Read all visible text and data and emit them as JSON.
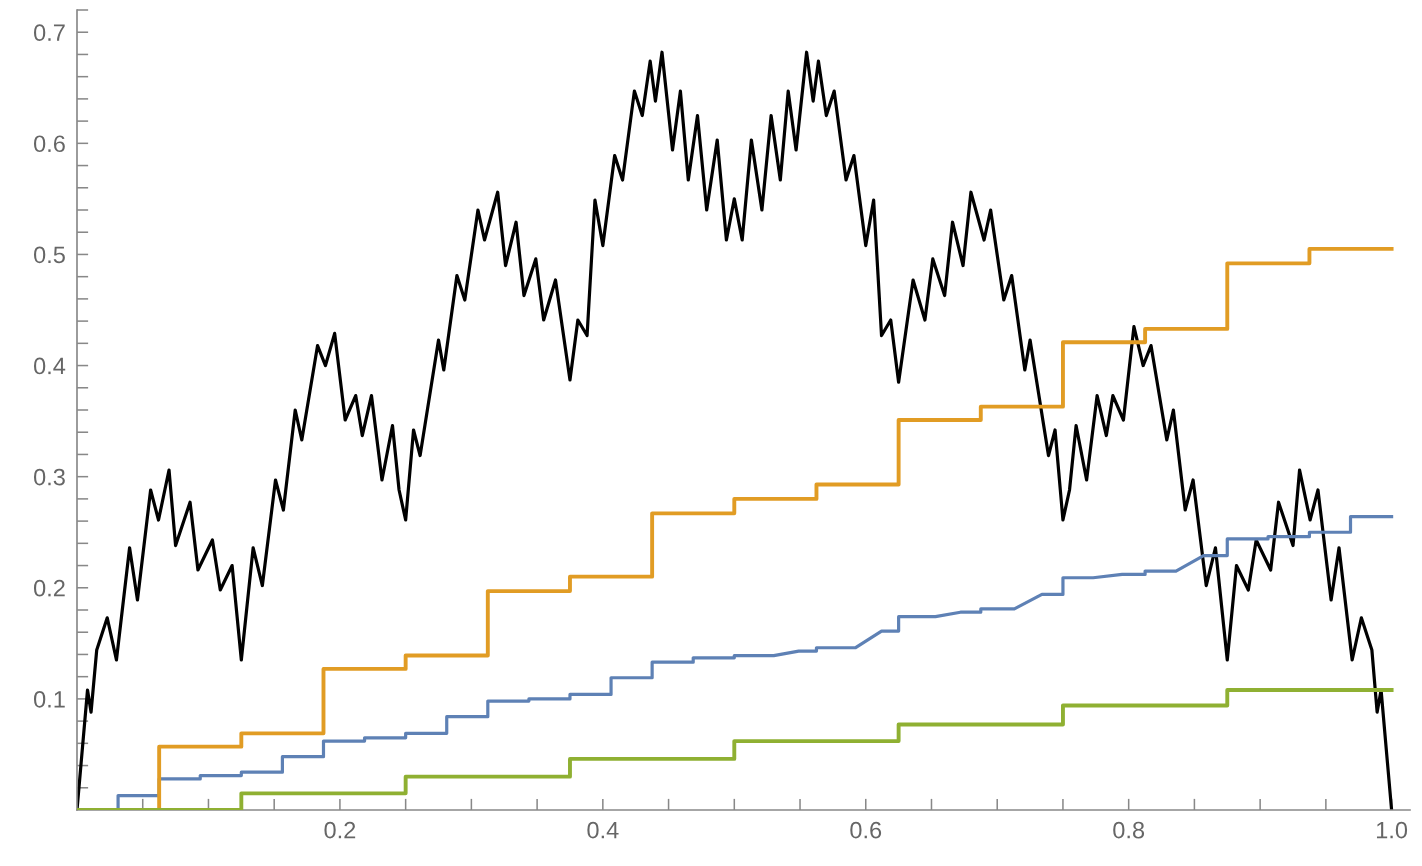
{
  "chart_data": {
    "type": "line",
    "xlim": [
      0,
      1.014
    ],
    "ylim": [
      0,
      0.72
    ],
    "xticks": [
      {
        "value": 0.05,
        "label": null
      },
      {
        "value": 0.1,
        "label": null
      },
      {
        "value": 0.15,
        "label": null
      },
      0.2,
      {
        "value": 0.25,
        "label": null
      },
      {
        "value": 0.3,
        "label": null
      },
      {
        "value": 0.35,
        "label": null
      },
      0.4,
      {
        "value": 0.45,
        "label": null
      },
      {
        "value": 0.5,
        "label": null
      },
      {
        "value": 0.55,
        "label": null
      },
      0.6,
      {
        "value": 0.65,
        "label": null
      },
      {
        "value": 0.7,
        "label": null
      },
      {
        "value": 0.75,
        "label": null
      },
      0.8,
      {
        "value": 0.85,
        "label": null
      },
      {
        "value": 0.9,
        "label": null
      },
      {
        "value": 0.95,
        "label": null
      },
      {
        "value": 1.0,
        "label": "1.0"
      }
    ],
    "yticks": [
      {
        "value": 0.02,
        "label": null
      },
      {
        "value": 0.04,
        "label": null
      },
      {
        "value": 0.06,
        "label": null
      },
      {
        "value": 0.08,
        "label": null
      },
      0.1,
      {
        "value": 0.12,
        "label": null
      },
      {
        "value": 0.14,
        "label": null
      },
      {
        "value": 0.16,
        "label": null
      },
      {
        "value": 0.18,
        "label": null
      },
      0.2,
      {
        "value": 0.22,
        "label": null
      },
      {
        "value": 0.24,
        "label": null
      },
      {
        "value": 0.26,
        "label": null
      },
      {
        "value": 0.28,
        "label": null
      },
      0.3,
      {
        "value": 0.32,
        "label": null
      },
      {
        "value": 0.34,
        "label": null
      },
      {
        "value": 0.36,
        "label": null
      },
      {
        "value": 0.38,
        "label": null
      },
      0.4,
      {
        "value": 0.42,
        "label": null
      },
      {
        "value": 0.44,
        "label": null
      },
      {
        "value": 0.46,
        "label": null
      },
      {
        "value": 0.48,
        "label": null
      },
      0.5,
      {
        "value": 0.52,
        "label": null
      },
      {
        "value": 0.54,
        "label": null
      },
      {
        "value": 0.56,
        "label": null
      },
      {
        "value": 0.58,
        "label": null
      },
      0.6,
      {
        "value": 0.62,
        "label": null
      },
      {
        "value": 0.64,
        "label": null
      },
      {
        "value": 0.66,
        "label": null
      },
      {
        "value": 0.68,
        "label": null
      },
      0.7,
      {
        "value": 0.72,
        "label": null
      }
    ],
    "grid": false,
    "legend": false,
    "series": [
      {
        "color": "#000000",
        "x": [
          0,
          0.008,
          0.0107,
          0.015,
          0.023,
          0.03,
          0.04,
          0.046,
          0.056,
          0.062,
          0.07,
          0.075,
          0.086,
          0.092,
          0.103,
          0.109,
          0.118,
          0.125,
          0.134,
          0.141,
          0.151,
          0.157,
          0.166,
          0.171,
          0.183,
          0.189,
          0.196,
          0.204,
          0.212,
          0.217,
          0.224,
          0.232,
          0.24,
          0.245,
          0.25,
          0.256,
          0.261,
          0.275,
          0.279,
          0.289,
          0.295,
          0.305,
          0.31,
          0.32,
          0.326,
          0.334,
          0.34,
          0.349,
          0.355,
          0.364,
          0.375,
          0.381,
          0.388,
          0.394,
          0.4,
          0.409,
          0.415,
          0.424,
          0.43,
          0.436,
          0.44,
          0.445,
          0.453,
          0.459,
          0.465,
          0.472,
          0.479,
          0.487,
          0.494,
          0.5,
          0.506,
          0.513,
          0.521,
          0.528,
          0.535,
          0.541,
          0.547,
          0.555,
          0.56,
          0.564,
          0.57,
          0.576,
          0.585,
          0.591,
          0.6,
          0.606,
          0.612,
          0.619,
          0.625,
          0.636,
          0.645,
          0.651,
          0.66,
          0.666,
          0.674,
          0.68,
          0.69,
          0.695,
          0.705,
          0.711,
          0.721,
          0.725,
          0.739,
          0.744,
          0.75,
          0.755,
          0.76,
          0.768,
          0.776,
          0.783,
          0.788,
          0.796,
          0.804,
          0.811,
          0.817,
          0.829,
          0.834,
          0.843,
          0.849,
          0.859,
          0.866,
          0.875,
          0.882,
          0.891,
          0.897,
          0.908,
          0.914,
          0.925,
          0.93,
          0.938,
          0.944,
          0.954,
          0.96,
          0.97,
          0.977,
          0.985,
          0.989,
          0.992,
          1.0
        ],
        "values": [
          0,
          0.108,
          0.088,
          0.144,
          0.173,
          0.135,
          0.236,
          0.189,
          0.288,
          0.261,
          0.306,
          0.238,
          0.277,
          0.216,
          0.243,
          0.198,
          0.22,
          0.135,
          0.236,
          0.202,
          0.297,
          0.27,
          0.36,
          0.333,
          0.418,
          0.4,
          0.429,
          0.351,
          0.373,
          0.337,
          0.373,
          0.297,
          0.346,
          0.288,
          0.261,
          0.342,
          0.319,
          0.423,
          0.396,
          0.481,
          0.459,
          0.54,
          0.513,
          0.556,
          0.49,
          0.529,
          0.463,
          0.496,
          0.441,
          0.477,
          0.387,
          0.441,
          0.427,
          0.549,
          0.508,
          0.589,
          0.567,
          0.647,
          0.625,
          0.674,
          0.638,
          0.682,
          0.594,
          0.647,
          0.567,
          0.625,
          0.54,
          0.603,
          0.513,
          0.55,
          0.513,
          0.603,
          0.54,
          0.625,
          0.567,
          0.647,
          0.594,
          0.682,
          0.638,
          0.674,
          0.625,
          0.647,
          0.567,
          0.589,
          0.508,
          0.549,
          0.427,
          0.441,
          0.385,
          0.477,
          0.441,
          0.496,
          0.463,
          0.529,
          0.49,
          0.556,
          0.513,
          0.54,
          0.459,
          0.481,
          0.396,
          0.423,
          0.319,
          0.342,
          0.261,
          0.288,
          0.346,
          0.297,
          0.373,
          0.337,
          0.373,
          0.351,
          0.435,
          0.4,
          0.418,
          0.333,
          0.36,
          0.27,
          0.297,
          0.202,
          0.236,
          0.135,
          0.22,
          0.198,
          0.243,
          0.216,
          0.277,
          0.238,
          0.306,
          0.261,
          0.288,
          0.189,
          0.236,
          0.135,
          0.173,
          0.144,
          0.088,
          0.108,
          0
        ]
      },
      {
        "type": "step",
        "color": "#e19c24",
        "x": [
          0,
          0.0625,
          0.125,
          0.1875,
          0.25,
          0.3125,
          0.375,
          0.4375,
          0.5,
          0.5625,
          0.625,
          0.6875,
          0.75,
          0.8125,
          0.875,
          0.9375,
          1.0
        ],
        "values": [
          0,
          0.057,
          0.069,
          0.127,
          0.139,
          0.197,
          0.21,
          0.267,
          0.28,
          0.293,
          0.351,
          0.363,
          0.421,
          0.433,
          0.492,
          0.505,
          0.505
        ]
      },
      {
        "color": "#5e81b5",
        "x": [
          0,
          0.03125,
          0.03125,
          0.0625,
          0.0625,
          0.09375,
          0.09375,
          0.125,
          0.125,
          0.15625,
          0.15625,
          0.1875,
          0.1875,
          0.21875,
          0.21875,
          0.25,
          0.25,
          0.28125,
          0.28125,
          0.3125,
          0.3125,
          0.34375,
          0.34375,
          0.375,
          0.375,
          0.40625,
          0.40625,
          0.4375,
          0.4375,
          0.46875,
          0.46875,
          0.5,
          0.5,
          0.53,
          0.549,
          0.5625,
          0.5625,
          0.592,
          0.612,
          0.625,
          0.625,
          0.653,
          0.672,
          0.6875,
          0.6875,
          0.713,
          0.734,
          0.75,
          0.75,
          0.773,
          0.795,
          0.8125,
          0.8125,
          0.836,
          0.857,
          0.875,
          0.875,
          0.906,
          0.906,
          0.9375,
          0.9375,
          0.96875,
          0.96875,
          1.0
        ],
        "values": [
          0,
          0,
          0.013,
          0.013,
          0.028,
          0.028,
          0.031,
          0.031,
          0.034,
          0.034,
          0.048,
          0.048,
          0.062,
          0.062,
          0.065,
          0.065,
          0.069,
          0.069,
          0.084,
          0.084,
          0.098,
          0.098,
          0.1,
          0.1,
          0.104,
          0.104,
          0.119,
          0.119,
          0.133,
          0.133,
          0.137,
          0.137,
          0.139,
          0.139,
          0.143,
          0.143,
          0.146,
          0.146,
          0.161,
          0.161,
          0.174,
          0.174,
          0.178,
          0.178,
          0.181,
          0.181,
          0.194,
          0.194,
          0.209,
          0.209,
          0.212,
          0.212,
          0.215,
          0.215,
          0.229,
          0.229,
          0.244,
          0.244,
          0.246,
          0.246,
          0.25,
          0.25,
          0.264,
          0.264
        ]
      },
      {
        "type": "step",
        "color": "#8fb032",
        "x": [
          0,
          0.125,
          0.25,
          0.375,
          0.5,
          0.625,
          0.75,
          0.875,
          1.0
        ],
        "values": [
          0,
          0.015,
          0.03,
          0.046,
          0.062,
          0.077,
          0.094,
          0.108,
          0.108
        ]
      }
    ]
  }
}
